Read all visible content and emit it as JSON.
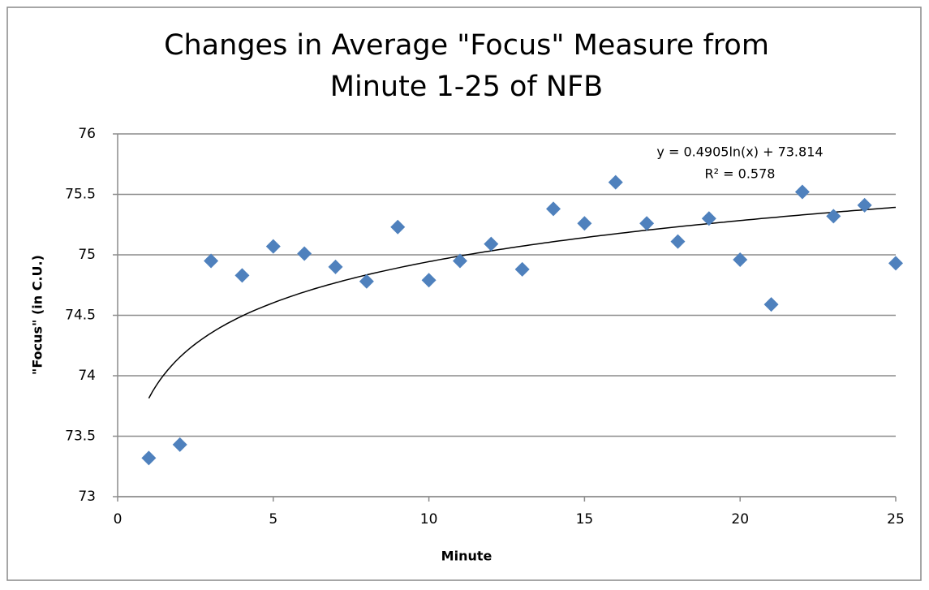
{
  "chart_data": {
    "type": "scatter",
    "title": [
      "Changes in Average \"Focus\" Measure from",
      "Minute 1-25 of NFB"
    ],
    "x_label": "Minute",
    "y_label": "\"Focus\" (in C.U.)",
    "series": [
      {
        "name": "Focus",
        "color": "#4f81bd",
        "x": [
          1,
          2,
          3,
          4,
          5,
          6,
          7,
          8,
          9,
          10,
          11,
          12,
          13,
          14,
          15,
          16,
          17,
          18,
          19,
          20,
          21,
          22,
          23,
          24,
          25
        ],
        "values": [
          73.32,
          73.43,
          74.95,
          74.83,
          75.07,
          75.01,
          74.9,
          74.78,
          75.23,
          74.79,
          74.95,
          75.09,
          74.88,
          75.38,
          75.26,
          75.6,
          75.26,
          75.11,
          75.3,
          74.96,
          74.59,
          75.52,
          75.32,
          75.41,
          74.93
        ]
      }
    ],
    "trendline": {
      "type": "log",
      "a": 0.4905,
      "b": 73.814,
      "color": "#000000",
      "equation": "y = 0.4905ln(x) + 73.814",
      "r2_label": "R² = 0.578"
    },
    "xlim": [
      0,
      25
    ],
    "xticks": [
      0,
      5,
      10,
      15,
      20,
      25
    ],
    "ylim": [
      73,
      76
    ],
    "yticks": [
      73,
      73.5,
      74,
      74.5,
      75,
      75.5,
      76
    ],
    "grid": true
  }
}
